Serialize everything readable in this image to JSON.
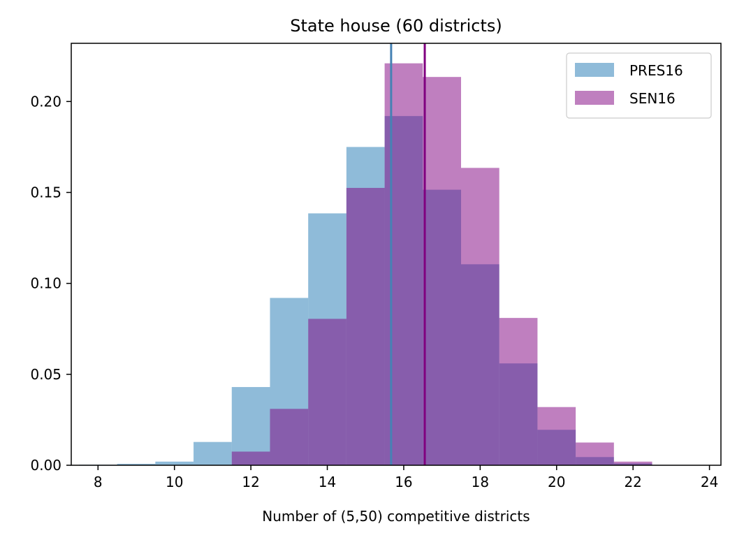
{
  "chart_data": {
    "type": "bar",
    "title": "State house (60 districts)",
    "xlabel": "Number of (5,50) competitive districts",
    "ylabel": "",
    "xlim": [
      7.3,
      24.3
    ],
    "ylim": [
      0,
      0.232
    ],
    "x_ticks": [
      8,
      10,
      12,
      14,
      16,
      18,
      20,
      22,
      24
    ],
    "y_ticks": [
      0.0,
      0.05,
      0.1,
      0.15,
      0.2
    ],
    "y_tick_labels": [
      "0.00",
      "0.05",
      "0.10",
      "0.15",
      "0.20"
    ],
    "legend_position": "top-right",
    "grid": false,
    "series": [
      {
        "name": "PRES16",
        "color": "#1f77b4",
        "opacity": 0.5,
        "bins": [
          {
            "x0": 7.5,
            "x1": 8.5,
            "value": 0.0003
          },
          {
            "x0": 8.5,
            "x1": 9.5,
            "value": 0.0008
          },
          {
            "x0": 9.5,
            "x1": 10.5,
            "value": 0.002
          },
          {
            "x0": 10.5,
            "x1": 11.5,
            "value": 0.0128
          },
          {
            "x0": 11.5,
            "x1": 12.5,
            "value": 0.043
          },
          {
            "x0": 12.5,
            "x1": 13.5,
            "value": 0.092
          },
          {
            "x0": 13.5,
            "x1": 14.5,
            "value": 0.1385
          },
          {
            "x0": 14.5,
            "x1": 15.5,
            "value": 0.175
          },
          {
            "x0": 15.5,
            "x1": 16.5,
            "value": 0.192
          },
          {
            "x0": 16.5,
            "x1": 17.5,
            "value": 0.1515
          },
          {
            "x0": 17.5,
            "x1": 18.5,
            "value": 0.1105
          },
          {
            "x0": 18.5,
            "x1": 19.5,
            "value": 0.056
          },
          {
            "x0": 19.5,
            "x1": 20.5,
            "value": 0.0195
          },
          {
            "x0": 20.5,
            "x1": 21.5,
            "value": 0.0045
          },
          {
            "x0": 21.5,
            "x1": 22.5,
            "value": 0.001
          },
          {
            "x0": 22.5,
            "x1": 23.5,
            "value": 0.0002
          }
        ]
      },
      {
        "name": "SEN16",
        "color": "#800080",
        "opacity": 0.5,
        "bins": [
          {
            "x0": 11.5,
            "x1": 12.5,
            "value": 0.0075
          },
          {
            "x0": 12.5,
            "x1": 13.5,
            "value": 0.031
          },
          {
            "x0": 13.5,
            "x1": 14.5,
            "value": 0.0805
          },
          {
            "x0": 14.5,
            "x1": 15.5,
            "value": 0.1525
          },
          {
            "x0": 15.5,
            "x1": 16.5,
            "value": 0.221
          },
          {
            "x0": 16.5,
            "x1": 17.5,
            "value": 0.2135
          },
          {
            "x0": 17.5,
            "x1": 18.5,
            "value": 0.1635
          },
          {
            "x0": 18.5,
            "x1": 19.5,
            "value": 0.081
          },
          {
            "x0": 19.5,
            "x1": 20.5,
            "value": 0.032
          },
          {
            "x0": 20.5,
            "x1": 21.5,
            "value": 0.0125
          },
          {
            "x0": 21.5,
            "x1": 22.5,
            "value": 0.002
          }
        ]
      }
    ],
    "reference_lines": [
      {
        "series": "PRES16",
        "x": 15.67,
        "color": "#4682b4"
      },
      {
        "series": "SEN16",
        "x": 16.55,
        "color": "#800080"
      }
    ]
  }
}
